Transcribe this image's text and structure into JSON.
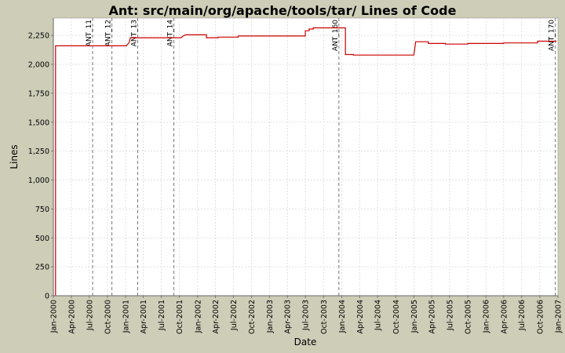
{
  "chart_data": {
    "type": "line",
    "title": "Ant: src/main/org/apache/tools/tar/ Lines of Code",
    "xlabel": "Date",
    "ylabel": "Lines",
    "xlim": [
      "2000-01-01",
      "2007-01-01"
    ],
    "ylim": [
      0,
      2400
    ],
    "grid": true,
    "legend": "none",
    "x_ticks": [
      "Jan-2000",
      "Apr-2000",
      "Jul-2000",
      "Oct-2000",
      "Jan-2001",
      "Apr-2001",
      "Jul-2001",
      "Oct-2001",
      "Jan-2002",
      "Apr-2002",
      "Jul-2002",
      "Oct-2002",
      "Jan-2003",
      "Apr-2003",
      "Jul-2003",
      "Oct-2003",
      "Jan-2004",
      "Apr-2004",
      "Jul-2004",
      "Oct-2004",
      "Jan-2005",
      "Apr-2005",
      "Jul-2005",
      "Oct-2005",
      "Jan-2006",
      "Apr-2006",
      "Jul-2006",
      "Oct-2006",
      "Jan-2007"
    ],
    "y_ticks": [
      "0",
      "250",
      "500",
      "750",
      "1,000",
      "1,250",
      "1,500",
      "1,750",
      "2,000",
      "2,250"
    ],
    "y_tick_values": [
      0,
      250,
      500,
      750,
      1000,
      1250,
      1500,
      1750,
      2000,
      2250
    ],
    "series": [
      {
        "color": "#cc0000",
        "points": [
          [
            "2000-01-12",
            0
          ],
          [
            "2000-01-12",
            2160
          ],
          [
            "2001-01-05",
            2160
          ],
          [
            "2001-01-20",
            2190
          ],
          [
            "2001-01-25",
            2230
          ],
          [
            "2001-10-10",
            2230
          ],
          [
            "2001-10-15",
            2240
          ],
          [
            "2001-11-01",
            2255
          ],
          [
            "2002-02-15",
            2255
          ],
          [
            "2002-02-15",
            2230
          ],
          [
            "2002-04-15",
            2230
          ],
          [
            "2002-04-15",
            2235
          ],
          [
            "2002-07-25",
            2235
          ],
          [
            "2002-07-25",
            2245
          ],
          [
            "2003-07-01",
            2245
          ],
          [
            "2003-07-01",
            2290
          ],
          [
            "2003-07-20",
            2290
          ],
          [
            "2003-07-20",
            2305
          ],
          [
            "2003-08-10",
            2305
          ],
          [
            "2003-08-10",
            2315
          ],
          [
            "2004-01-20",
            2315
          ],
          [
            "2004-01-20",
            2085
          ],
          [
            "2004-03-01",
            2085
          ],
          [
            "2004-03-01",
            2080
          ],
          [
            "2005-01-01",
            2080
          ],
          [
            "2005-01-10",
            2195
          ],
          [
            "2005-03-15",
            2195
          ],
          [
            "2005-03-15",
            2180
          ],
          [
            "2005-06-10",
            2180
          ],
          [
            "2005-06-10",
            2175
          ],
          [
            "2005-10-01",
            2175
          ],
          [
            "2005-10-01",
            2180
          ],
          [
            "2006-04-01",
            2180
          ],
          [
            "2006-04-01",
            2185
          ],
          [
            "2006-09-20",
            2185
          ],
          [
            "2006-09-20",
            2200
          ],
          [
            "2006-12-25",
            2200
          ]
        ]
      }
    ],
    "markers": [
      {
        "label": "ANT_11",
        "date": "2000-07-18"
      },
      {
        "label": "ANT_12",
        "date": "2000-10-24"
      },
      {
        "label": "ANT_13",
        "date": "2001-03-03"
      },
      {
        "label": "ANT_14",
        "date": "2001-09-03"
      },
      {
        "label": "ANT_160",
        "date": "2003-12-18"
      },
      {
        "label": "ANT_170",
        "date": "2006-12-19"
      }
    ]
  }
}
